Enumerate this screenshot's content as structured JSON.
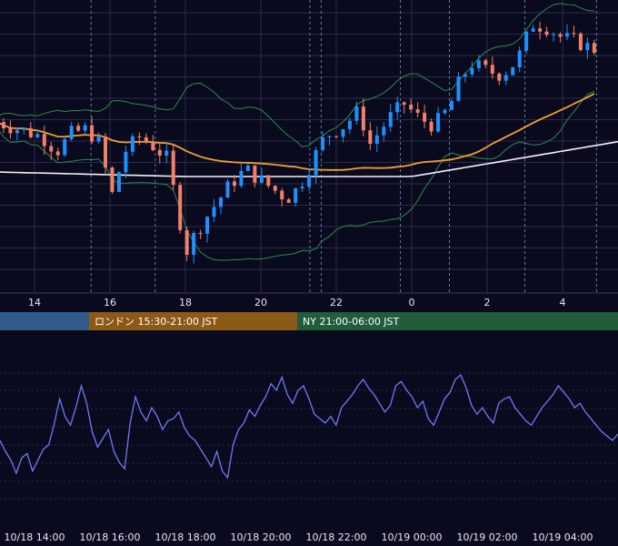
{
  "colors": {
    "background": "#0a0a1f",
    "grid": "#2a2a46",
    "session_line_dotted": "#5a7bb5",
    "candle_up": "#1e90ff",
    "candle_down": "#f28066",
    "bollinger": "#2f8a4a",
    "ma_slow": "#f0a030",
    "ma_long": "#f2f2f2",
    "oscillator": "#6f7af0",
    "session_tokyo": "#2f5b8d",
    "session_london": "#8c5a17",
    "session_ny": "#215c3b"
  },
  "sessions": [
    {
      "label": "",
      "color": "#2f5b8d"
    },
    {
      "label": "ロンドン 15:30-21:00 JST",
      "color": "#8c5a17"
    },
    {
      "label": "NY 21:00-06:00 JST",
      "color": "#215c3b"
    }
  ],
  "chart_data": [
    {
      "type": "candlestick",
      "title": "",
      "x_ticks": [
        "14",
        "16",
        "18",
        "20",
        "22",
        "0",
        "2",
        "4"
      ],
      "overlays": [
        "bollinger-bands",
        "moving-average",
        "long-moving-average"
      ],
      "grid": true,
      "close_series_shape": [
        [
          13.0,
          0.78
        ],
        [
          13.6,
          0.74
        ],
        [
          14.2,
          0.7
        ],
        [
          14.6,
          0.62
        ],
        [
          15.0,
          0.72
        ],
        [
          15.4,
          0.74
        ],
        [
          15.8,
          0.64
        ],
        [
          16.0,
          0.34
        ],
        [
          16.4,
          0.62
        ],
        [
          16.8,
          0.7
        ],
        [
          17.2,
          0.64
        ],
        [
          17.5,
          0.58
        ],
        [
          17.8,
          0.3
        ],
        [
          18.0,
          0.06
        ],
        [
          18.3,
          0.18
        ],
        [
          18.7,
          0.3
        ],
        [
          19.2,
          0.44
        ],
        [
          19.6,
          0.52
        ],
        [
          20.0,
          0.46
        ],
        [
          20.4,
          0.4
        ],
        [
          20.7,
          0.36
        ],
        [
          21.0,
          0.42
        ],
        [
          21.4,
          0.58
        ],
        [
          21.7,
          0.7
        ],
        [
          22.2,
          0.76
        ],
        [
          22.6,
          0.84
        ],
        [
          22.9,
          0.66
        ],
        [
          23.4,
          0.8
        ],
        [
          23.8,
          0.88
        ],
        [
          24.2,
          0.8
        ],
        [
          24.6,
          0.76
        ],
        [
          25.0,
          0.86
        ],
        [
          25.3,
          1.02
        ],
        [
          25.6,
          1.1
        ],
        [
          26.0,
          1.06
        ],
        [
          26.4,
          1.04
        ],
        [
          26.8,
          1.12
        ],
        [
          27.2,
          1.32
        ],
        [
          27.6,
          1.3
        ],
        [
          28.0,
          1.24
        ],
        [
          28.4,
          1.22
        ],
        [
          28.8,
          1.18
        ]
      ]
    },
    {
      "type": "line",
      "title": "",
      "series": [
        {
          "name": ""
        }
      ],
      "x_ticks": [
        "10/18 14:00",
        "10/18 16:00",
        "10/18 18:00",
        "10/18 20:00",
        "10/18 22:00",
        "10/19 00:00",
        "10/19 02:00",
        "10/19 04:00"
      ],
      "values": [
        0.4,
        0.3,
        0.22,
        0.1,
        0.24,
        0.28,
        0.12,
        0.22,
        0.32,
        0.36,
        0.55,
        0.78,
        0.62,
        0.54,
        0.7,
        0.9,
        0.74,
        0.48,
        0.34,
        0.42,
        0.5,
        0.3,
        0.2,
        0.14,
        0.56,
        0.8,
        0.66,
        0.58,
        0.7,
        0.62,
        0.5,
        0.58,
        0.6,
        0.66,
        0.52,
        0.44,
        0.4,
        0.32,
        0.24,
        0.16,
        0.3,
        0.12,
        0.06,
        0.36,
        0.5,
        0.56,
        0.68,
        0.62,
        0.72,
        0.8,
        0.92,
        0.86,
        0.98,
        0.82,
        0.74,
        0.86,
        0.9,
        0.78,
        0.64,
        0.6,
        0.56,
        0.62,
        0.54,
        0.7,
        0.76,
        0.82,
        0.9,
        0.96,
        0.88,
        0.82,
        0.74,
        0.66,
        0.72,
        0.9,
        0.94,
        0.86,
        0.8,
        0.7,
        0.76,
        0.6,
        0.54,
        0.66,
        0.78,
        0.84,
        0.96,
        1.0,
        0.88,
        0.72,
        0.64,
        0.7,
        0.62,
        0.56,
        0.74,
        0.78,
        0.8,
        0.7,
        0.64,
        0.58,
        0.54,
        0.62,
        0.7,
        0.76,
        0.82,
        0.9,
        0.84,
        0.78,
        0.7,
        0.74,
        0.66,
        0.6,
        0.54,
        0.48,
        0.44,
        0.4,
        0.46
      ]
    }
  ]
}
